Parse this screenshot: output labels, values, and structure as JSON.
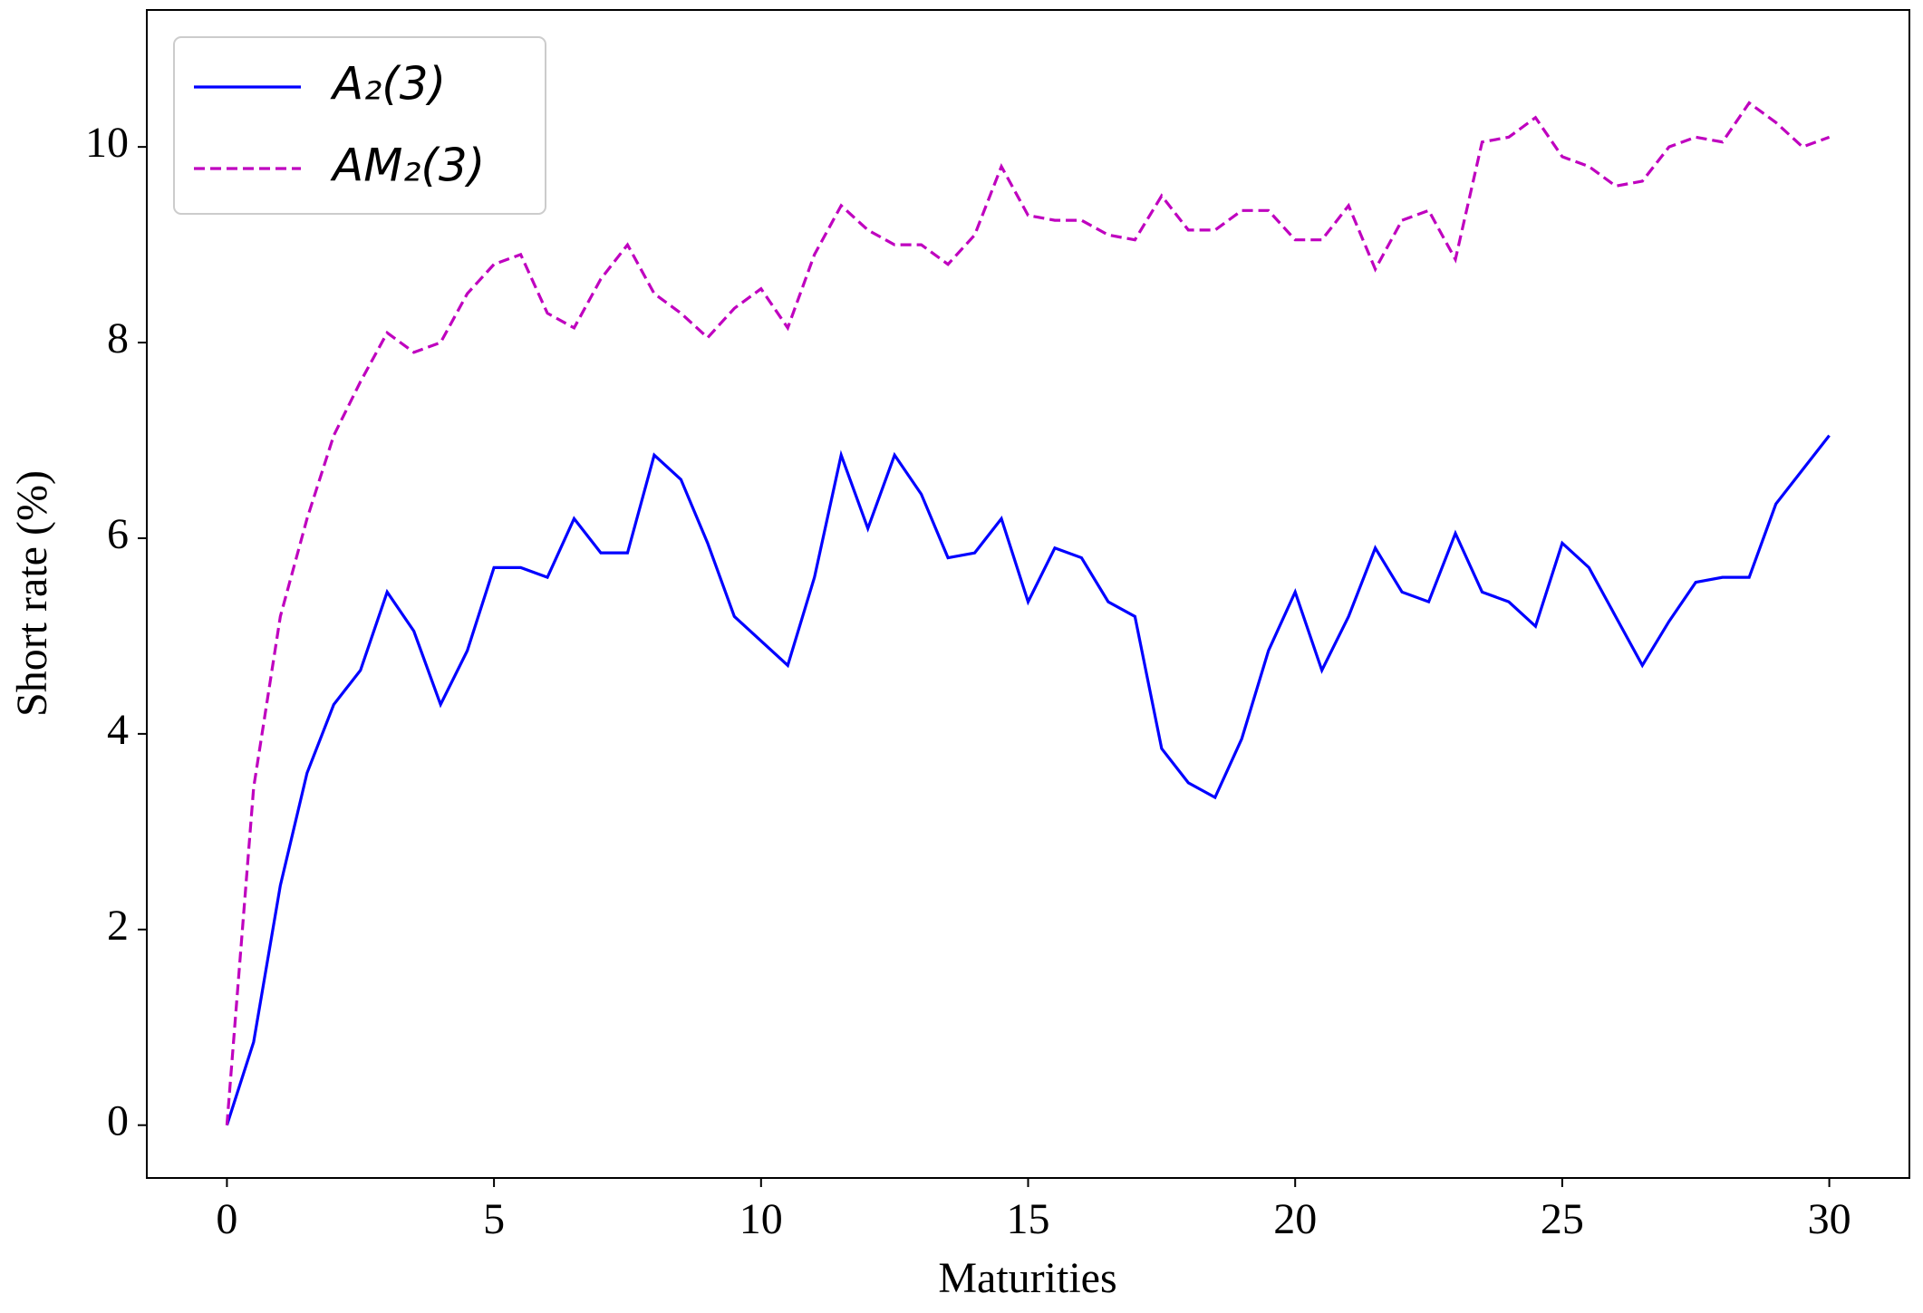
{
  "chart_data": {
    "type": "line",
    "xlabel": "Maturities",
    "ylabel": "Short rate (%)",
    "x": [
      0,
      0.5,
      1,
      1.5,
      2,
      2.5,
      3,
      3.5,
      4,
      4.5,
      5,
      5.5,
      6,
      6.5,
      7,
      7.5,
      8,
      8.5,
      9,
      9.5,
      10,
      10.5,
      11,
      11.5,
      12,
      12.5,
      13,
      13.5,
      14,
      14.5,
      15,
      15.5,
      16,
      16.5,
      17,
      17.5,
      18,
      18.5,
      19,
      19.5,
      20,
      20.5,
      21,
      21.5,
      22,
      22.5,
      23,
      23.5,
      24,
      24.5,
      25,
      25.5,
      26,
      26.5,
      27,
      27.5,
      28,
      28.5,
      29,
      29.5,
      30
    ],
    "series": [
      {
        "name": "A₂(3)",
        "color": "#0000ff",
        "linestyle": "solid",
        "values": [
          0,
          0.85,
          2.45,
          3.6,
          4.3,
          4.65,
          5.45,
          5.05,
          4.3,
          4.85,
          5.7,
          5.7,
          5.6,
          6.2,
          5.85,
          5.85,
          6.85,
          6.6,
          5.95,
          5.2,
          4.95,
          4.7,
          5.6,
          6.85,
          6.1,
          6.85,
          6.45,
          5.8,
          5.85,
          6.2,
          5.35,
          5.9,
          5.8,
          5.35,
          5.2,
          3.85,
          3.5,
          3.35,
          3.95,
          4.85,
          5.45,
          4.65,
          5.2,
          5.9,
          5.45,
          5.35,
          6.05,
          5.45,
          5.35,
          5.1,
          5.95,
          5.7,
          5.2,
          4.7,
          5.15,
          5.55,
          5.6,
          5.6,
          6.35,
          6.7,
          7.05
        ]
      },
      {
        "name": "AM₂(3)",
        "color": "#bf00bf",
        "linestyle": "dashed",
        "values": [
          0,
          3.45,
          5.2,
          6.2,
          7.05,
          7.6,
          8.1,
          7.9,
          8.0,
          8.5,
          8.8,
          8.9,
          8.3,
          8.15,
          8.65,
          9.0,
          8.5,
          8.3,
          8.05,
          8.35,
          8.55,
          8.15,
          8.9,
          9.4,
          9.15,
          9.0,
          9.0,
          8.8,
          9.1,
          9.8,
          9.3,
          9.25,
          9.25,
          9.1,
          9.05,
          9.5,
          9.15,
          9.15,
          9.35,
          9.35,
          9.05,
          9.05,
          9.4,
          8.75,
          9.25,
          9.35,
          8.85,
          10.05,
          10.1,
          10.3,
          9.9,
          9.8,
          9.6,
          9.65,
          10.0,
          10.1,
          10.05,
          10.45,
          10.25,
          10.0,
          10.1
        ]
      }
    ],
    "xlim": [
      -1.5,
      31.5
    ],
    "xticks": [
      0,
      5,
      10,
      15,
      20,
      25,
      30
    ],
    "ylim": [
      -0.54,
      11.4
    ],
    "yticks": [
      0,
      2,
      4,
      6,
      8,
      10
    ],
    "grid": false,
    "legend": "upper left"
  }
}
